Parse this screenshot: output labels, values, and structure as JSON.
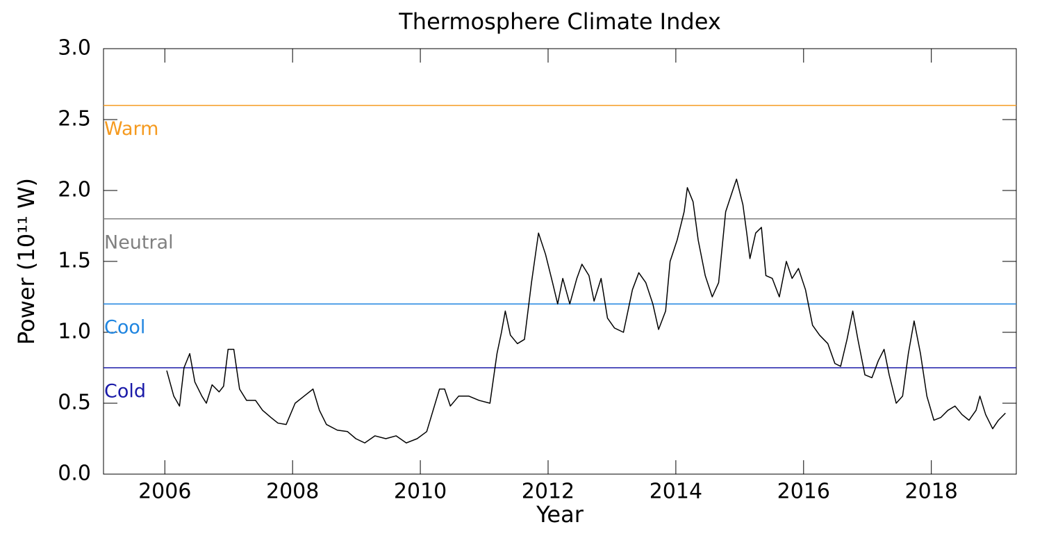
{
  "chart_data": {
    "type": "line",
    "title": "Thermosphere Climate Index",
    "xlabel": "Year",
    "ylabel": "Power (10¹¹ W)",
    "xlim": [
      2005.04,
      2019.33
    ],
    "ylim": [
      0,
      3
    ],
    "xticks": [
      2006,
      2008,
      2010,
      2012,
      2014,
      2016,
      2018
    ],
    "yticks": [
      {
        "value": 0,
        "label": "0.0"
      },
      {
        "value": 0.5,
        "label": "0.5"
      },
      {
        "value": 1,
        "label": "1.0"
      },
      {
        "value": 1.5,
        "label": "1.5"
      },
      {
        "value": 2,
        "label": "2.0"
      },
      {
        "value": 2.5,
        "label": "2.5"
      },
      {
        "value": 3,
        "label": "3.0"
      }
    ],
    "reference_lines": [
      {
        "name": "Warm",
        "value": 2.6,
        "color": "#f59a1f"
      },
      {
        "name": "Neutral",
        "value": 1.8,
        "color": "#808080"
      },
      {
        "name": "Cool",
        "value": 1.2,
        "color": "#1f85e0"
      },
      {
        "name": "Cold",
        "value": 0.75,
        "color": "#1a1aa8"
      }
    ],
    "x": [
      2006.03,
      2006.14,
      2006.23,
      2006.3,
      2006.39,
      2006.47,
      2006.58,
      2006.65,
      2006.74,
      2006.85,
      2006.92,
      2006.99,
      2007.08,
      2007.17,
      2007.28,
      2007.42,
      2007.53,
      2007.66,
      2007.77,
      2007.9,
      2008.04,
      2008.18,
      2008.32,
      2008.42,
      2008.53,
      2008.7,
      2008.86,
      2008.99,
      2009.13,
      2009.29,
      2009.46,
      2009.62,
      2009.78,
      2009.95,
      2010.1,
      2010.2,
      2010.3,
      2010.38,
      2010.47,
      2010.6,
      2010.76,
      2010.92,
      2011.09,
      2011.2,
      2011.27,
      2011.33,
      2011.41,
      2011.52,
      2011.63,
      2011.74,
      2011.85,
      2011.96,
      2012.07,
      2012.15,
      2012.23,
      2012.34,
      2012.45,
      2012.53,
      2012.64,
      2012.72,
      2012.83,
      2012.93,
      2013.04,
      2013.18,
      2013.32,
      2013.42,
      2013.53,
      2013.64,
      2013.73,
      2013.84,
      2013.91,
      2014.02,
      2014.13,
      2014.18,
      2014.27,
      2014.35,
      2014.46,
      2014.57,
      2014.67,
      2014.78,
      2014.89,
      2014.95,
      2015.05,
      2015.11,
      2015.16,
      2015.25,
      2015.34,
      2015.41,
      2015.51,
      2015.62,
      2015.73,
      2015.82,
      2015.92,
      2016.03,
      2016.14,
      2016.25,
      2016.38,
      2016.49,
      2016.58,
      2016.68,
      2016.77,
      2016.85,
      2016.96,
      2017.07,
      2017.17,
      2017.26,
      2017.34,
      2017.45,
      2017.55,
      2017.64,
      2017.73,
      2017.83,
      2017.93,
      2018.04,
      2018.15,
      2018.26,
      2018.37,
      2018.48,
      2018.59,
      2018.7,
      2018.76,
      2018.85,
      2018.96,
      2019.05,
      2019.16
    ],
    "series": [
      {
        "name": "TCI",
        "color": "#000000",
        "values": [
          0.73,
          0.55,
          0.48,
          0.75,
          0.85,
          0.65,
          0.55,
          0.5,
          0.63,
          0.58,
          0.62,
          0.88,
          0.88,
          0.6,
          0.52,
          0.52,
          0.45,
          0.4,
          0.36,
          0.35,
          0.5,
          0.55,
          0.6,
          0.45,
          0.35,
          0.31,
          0.3,
          0.25,
          0.22,
          0.27,
          0.25,
          0.27,
          0.22,
          0.25,
          0.3,
          0.45,
          0.6,
          0.6,
          0.48,
          0.55,
          0.55,
          0.52,
          0.5,
          0.85,
          1.0,
          1.15,
          0.98,
          0.92,
          0.95,
          1.35,
          1.7,
          1.55,
          1.35,
          1.2,
          1.38,
          1.2,
          1.38,
          1.48,
          1.4,
          1.22,
          1.38,
          1.1,
          1.03,
          1.0,
          1.3,
          1.42,
          1.35,
          1.2,
          1.02,
          1.15,
          1.5,
          1.65,
          1.85,
          2.02,
          1.92,
          1.65,
          1.4,
          1.25,
          1.35,
          1.85,
          2.0,
          2.08,
          1.9,
          1.7,
          1.52,
          1.7,
          1.74,
          1.4,
          1.38,
          1.25,
          1.5,
          1.38,
          1.45,
          1.3,
          1.05,
          0.98,
          0.92,
          0.78,
          0.76,
          0.95,
          1.15,
          0.95,
          0.7,
          0.68,
          0.8,
          0.88,
          0.7,
          0.5,
          0.55,
          0.85,
          1.08,
          0.85,
          0.55,
          0.38,
          0.4,
          0.45,
          0.48,
          0.42,
          0.38,
          0.45,
          0.55,
          0.42,
          0.32,
          0.38,
          0.43
        ]
      }
    ]
  }
}
